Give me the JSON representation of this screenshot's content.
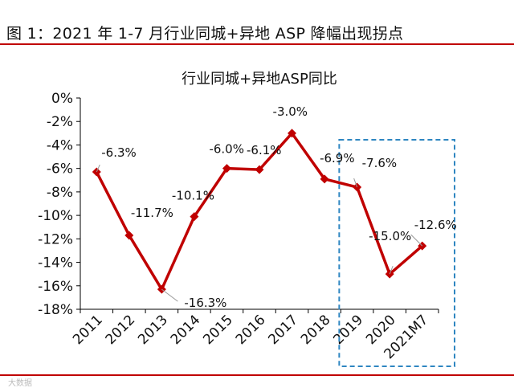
{
  "figure_title": "图 1：2021 年 1-7 月行业同城+异地 ASP 降幅出现拐点",
  "watermark": "大数据",
  "colors": {
    "series": "#c00000",
    "header_rule": "#c00000",
    "highlight_box": "#2e86c1",
    "axis": "#000000"
  },
  "chart_data": {
    "type": "line",
    "title": "行业同城+异地ASP同比",
    "categories": [
      "2011",
      "2012",
      "2013",
      "2014",
      "2015",
      "2016",
      "2017",
      "2018",
      "2019",
      "2020",
      "2021M7"
    ],
    "series": [
      {
        "name": "行业同城+异地ASP同比",
        "values": [
          -6.3,
          -11.7,
          -16.3,
          -10.1,
          -6.0,
          -6.1,
          -3.0,
          -6.9,
          -7.6,
          -15.0,
          -12.6
        ],
        "data_labels": [
          "-6.3%",
          "-11.7%",
          "-16.3%",
          "-10.1%",
          "-6.0%",
          "-6.1%",
          "-3.0%",
          "-6.9%",
          "-7.6%",
          "-15.0%",
          "-12.6%"
        ]
      }
    ],
    "ylim": [
      -18,
      0
    ],
    "yticks": [
      0,
      -2,
      -4,
      -6,
      -8,
      -10,
      -12,
      -14,
      -16,
      -18
    ],
    "ytick_labels": [
      "0%",
      "-2%",
      "-4%",
      "-6%",
      "-8%",
      "-10%",
      "-12%",
      "-14%",
      "-16%",
      "-18%"
    ],
    "xlabel": "",
    "ylabel": "",
    "grid": false,
    "highlight_range": [
      "2019",
      "2021M7"
    ]
  }
}
